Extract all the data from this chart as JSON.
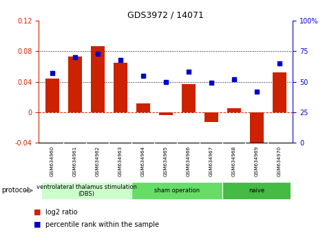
{
  "title": "GDS3972 / 14071",
  "samples": [
    "GSM634960",
    "GSM634961",
    "GSM634962",
    "GSM634963",
    "GSM634964",
    "GSM634965",
    "GSM634966",
    "GSM634967",
    "GSM634968",
    "GSM634969",
    "GSM634970"
  ],
  "log2_ratio": [
    0.044,
    0.073,
    0.087,
    0.065,
    0.012,
    -0.004,
    0.037,
    -0.013,
    0.005,
    -0.048,
    0.052
  ],
  "percentile_rank": [
    57,
    70,
    73,
    68,
    55,
    50,
    58,
    49,
    52,
    42,
    65
  ],
  "bar_color": "#cc2200",
  "dot_color": "#0000cc",
  "ylim_left": [
    -0.04,
    0.12
  ],
  "ylim_right": [
    0,
    100
  ],
  "yticks_left": [
    -0.04,
    0.0,
    0.04,
    0.08,
    0.12
  ],
  "yticks_right": [
    0,
    25,
    50,
    75,
    100
  ],
  "hlines": [
    0.04,
    0.08
  ],
  "hline_color": "black",
  "zero_line_color": "#cc2200",
  "protocol_groups": [
    {
      "label": "ventrolateral thalamus stimulation\n(DBS)",
      "start": 0,
      "end": 3,
      "color": "#ccffcc"
    },
    {
      "label": "sham operation",
      "start": 4,
      "end": 7,
      "color": "#66dd66"
    },
    {
      "label": "naive",
      "start": 8,
      "end": 10,
      "color": "#44bb44"
    }
  ],
  "protocol_label": "protocol",
  "legend_items": [
    {
      "label": "log2 ratio",
      "color": "#cc2200"
    },
    {
      "label": "percentile rank within the sample",
      "color": "#0000cc"
    }
  ],
  "background_color": "#ffffff",
  "tick_area_color": "#cccccc"
}
